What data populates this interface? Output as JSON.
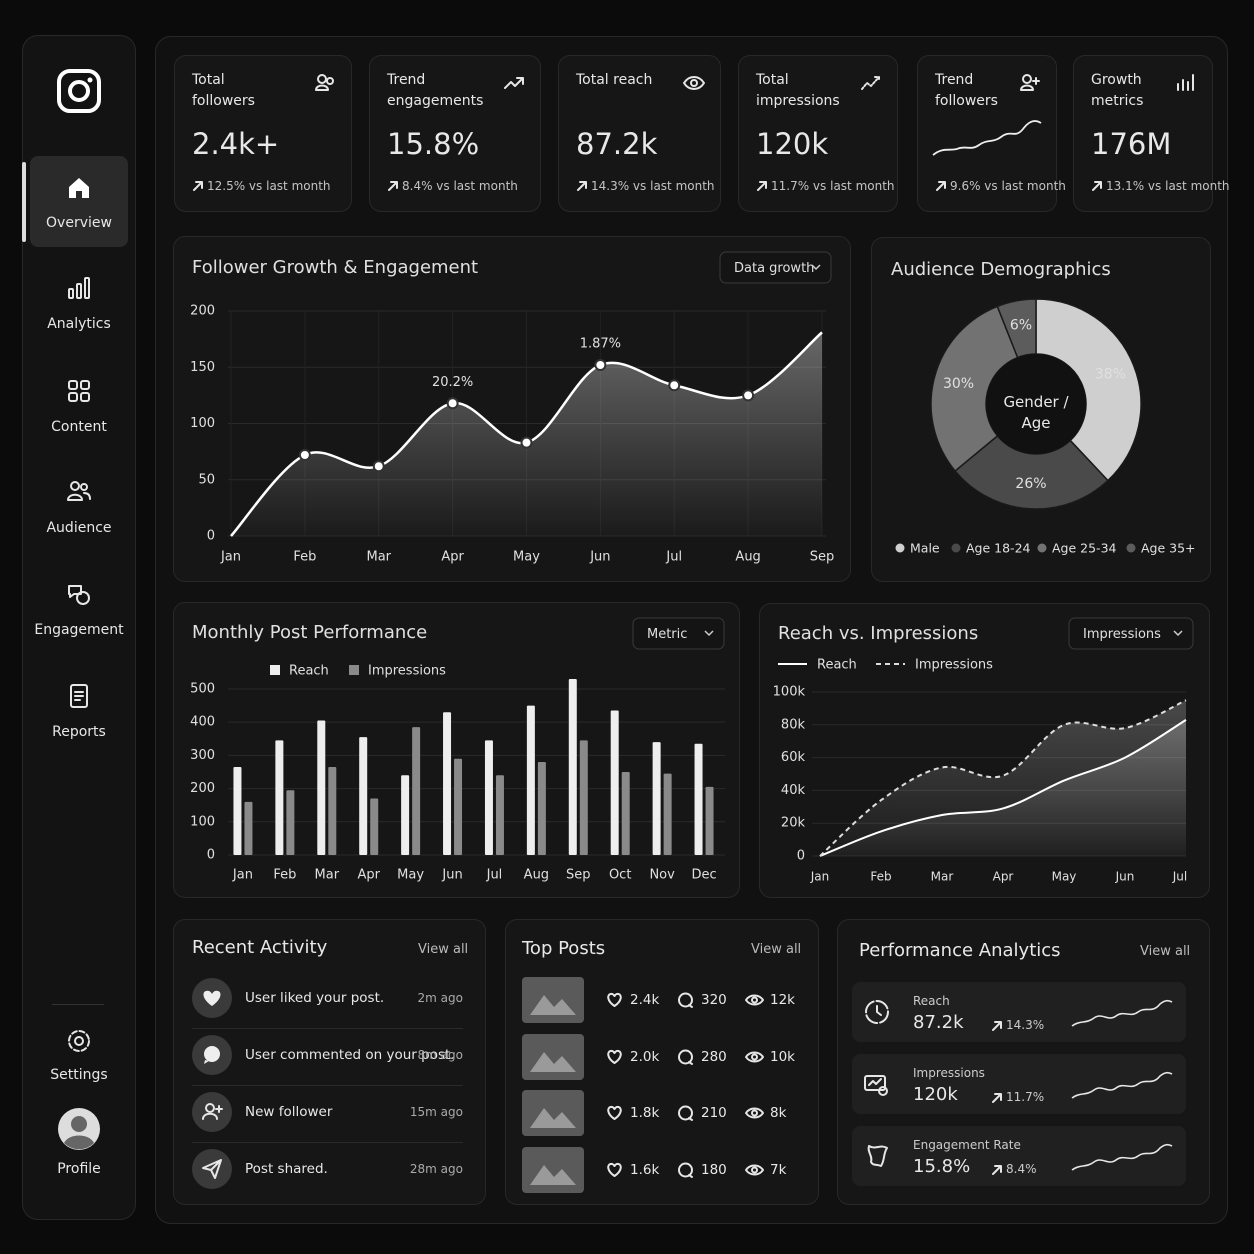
{
  "sidebar": {
    "items": [
      "Overview",
      "Analytics",
      "Content",
      "Audience",
      "Engagement",
      "Reports"
    ],
    "settings": "Settings",
    "profile": "Profile"
  },
  "kpis": [
    {
      "title": "Total followers",
      "value": "2.4k+",
      "change": "12.5% vs last month"
    },
    {
      "title": "Trend engagements",
      "value": "15.8%",
      "change": "8.4% vs last month"
    },
    {
      "title": "Total reach",
      "value": "87.2k",
      "change": "14.3% vs last month"
    },
    {
      "title": "Total impressions",
      "value": "120k",
      "change": "11.7% vs last month"
    },
    {
      "title": "Trend followers",
      "change": "9.6% vs last month"
    },
    {
      "title": "Growth metrics",
      "value": "176M",
      "change": "13.1% vs last month"
    }
  ],
  "chart_data": [
    {
      "type": "area",
      "title": "Follower Growth & Engagement",
      "dropdown": "Data growth",
      "categories": [
        "Jan",
        "Feb",
        "Mar",
        "Apr",
        "May",
        "Jun",
        "Jul",
        "Aug",
        "Sep"
      ],
      "values": [
        0,
        72,
        62,
        118,
        83,
        152,
        134,
        125,
        181
      ],
      "color": "#ffffff",
      "ylim": [
        0,
        200
      ],
      "yticks": [
        0,
        50,
        100,
        150,
        200
      ],
      "grid": true,
      "annotations": [
        {
          "category": "Apr",
          "text": "20.2%"
        },
        {
          "category": "Jun",
          "text": "1.87%"
        }
      ]
    },
    {
      "type": "pie",
      "title": "Audience Demographics",
      "center_label": "Gender / Age",
      "categories": [
        "Male",
        "Age 18-24",
        "Age 25-34",
        "Age 35+"
      ],
      "values": [
        38,
        26,
        30,
        6
      ],
      "value_labels": [
        "38%",
        "26%",
        "30%",
        "6%"
      ],
      "colors": [
        "#cfcfcf",
        "#4a4a4a",
        "#727272",
        "#5c5c5c"
      ]
    },
    {
      "type": "grouped_bar",
      "title": "Monthly Post Performance",
      "dropdown": "Metric",
      "categories": [
        "Jan",
        "Feb",
        "Mar",
        "Apr",
        "May",
        "Jun",
        "Jul",
        "Aug",
        "Sep",
        "Oct",
        "Nov",
        "Dec"
      ],
      "series": [
        {
          "name": "Reach",
          "color": "#eeeeee",
          "values": [
            265,
            345,
            405,
            355,
            240,
            430,
            345,
            450,
            530,
            435,
            340,
            335
          ]
        },
        {
          "name": "Impressions",
          "color": "#8a8a8a",
          "values": [
            160,
            195,
            265,
            170,
            385,
            290,
            240,
            280,
            345,
            250,
            245,
            205
          ]
        }
      ],
      "ylim": [
        0,
        530
      ],
      "yticks": [
        0,
        100,
        200,
        300,
        400,
        500
      ],
      "grid": true
    },
    {
      "type": "line",
      "title": "Reach vs. Impressions",
      "dropdown": "Impressions",
      "categories": [
        "Jan",
        "Feb",
        "Mar",
        "Apr",
        "May",
        "Jun",
        "Jul"
      ],
      "series": [
        {
          "name": "Reach",
          "color": "#ffffff",
          "line_style": "solid",
          "values": [
            0,
            15000,
            25000,
            29000,
            46000,
            60000,
            83000
          ]
        },
        {
          "name": "Impressions",
          "color": "#dddddd",
          "line_style": "dashed",
          "values": [
            0,
            34000,
            54000,
            49000,
            80000,
            78000,
            95000
          ]
        }
      ],
      "ylim": [
        0,
        100000
      ],
      "yticks": [
        0,
        {
          "value": 20000,
          "label": "20k"
        },
        {
          "value": 40000,
          "label": "40k"
        },
        {
          "value": 60000,
          "label": "60k"
        },
        {
          "value": 80000,
          "label": "80k"
        },
        {
          "value": 100000,
          "label": "100k"
        }
      ],
      "grid": true
    }
  ],
  "recent_activity": {
    "title": "Recent Activity",
    "link": "View all",
    "items": [
      {
        "text": "User liked your post.",
        "time": "2m ago"
      },
      {
        "text": "User commented on your post.",
        "time": "8m ago"
      },
      {
        "text": "New follower",
        "time": "15m ago"
      },
      {
        "text": "Post shared.",
        "time": "28m ago"
      }
    ]
  },
  "top_posts": {
    "title": "Top Posts",
    "link": "View all",
    "rows": [
      {
        "likes": "2.4k",
        "comments": 320,
        "views": "12k"
      },
      {
        "likes": "2.0k",
        "comments": 280,
        "views": "10k"
      },
      {
        "likes": "1.8k",
        "comments": 210,
        "views": "8k"
      },
      {
        "likes": "1.6k",
        "comments": 180,
        "views": "7k"
      }
    ]
  },
  "performance_analytics": {
    "title": "Performance Analytics",
    "link": "View all",
    "items": [
      {
        "label": "Reach",
        "value": "87.2k",
        "change": "14.3%"
      },
      {
        "label": "Impressions",
        "value": "120k",
        "change": "11.7%"
      },
      {
        "label": "Engagement Rate",
        "value": "15.8%",
        "change": "8.4%"
      }
    ]
  }
}
